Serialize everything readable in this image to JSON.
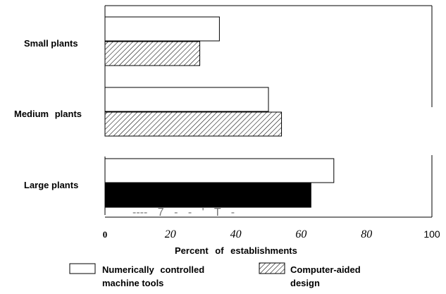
{
  "chart_data": {
    "type": "bar",
    "orientation": "horizontal",
    "title": "",
    "categories": [
      "Small plants",
      "Medium plants",
      "Large plants"
    ],
    "series": [
      {
        "name": "Numerically controlled machine tools",
        "values": [
          35,
          50,
          70
        ],
        "fill": "white"
      },
      {
        "name": "Computer-aided design",
        "values": [
          29,
          54,
          63
        ],
        "fill": "hatched (black solid for Large plants)"
      }
    ],
    "xlim": [
      0,
      100
    ],
    "xticks": [
      "0",
      "20",
      "40",
      "60",
      "80",
      "100"
    ],
    "xlabel": "Percent of establishments",
    "ylabel": "",
    "grid": false,
    "legend_position": "bottom",
    "axis_artifact_text": "---- 7  -  -  '  T  -"
  },
  "legend": {
    "items": [
      {
        "line1": "Numerically controlled",
        "line2": "machine tools"
      },
      {
        "line1": "Computer-aided",
        "line2": "design"
      }
    ]
  },
  "colors": {
    "ink": "#000000",
    "background": "#ffffff",
    "hatch": "#000000"
  }
}
